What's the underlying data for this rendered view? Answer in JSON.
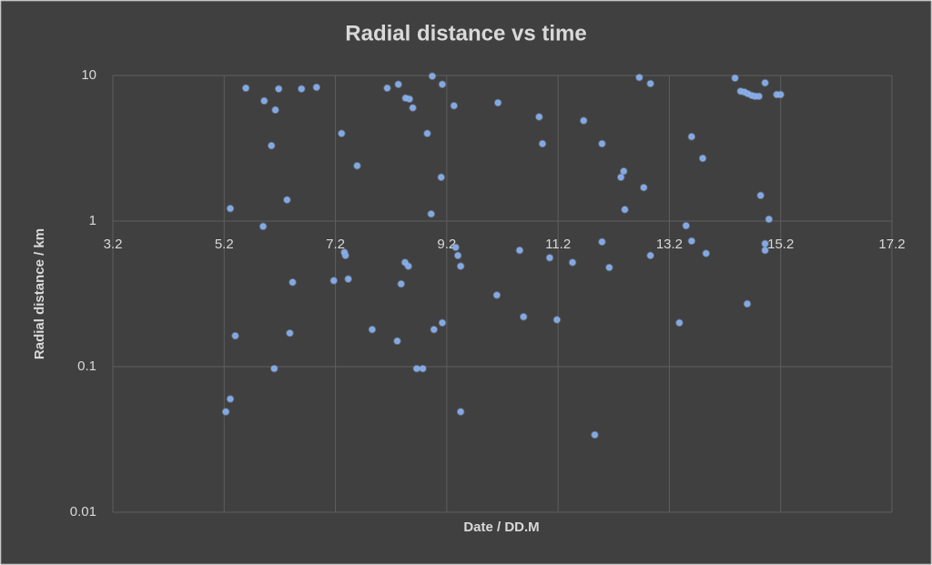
{
  "chart_data": {
    "type": "scatter",
    "title": "Radial distance vs time",
    "x_label": "Date / DD.M",
    "y_label": "Radial distance / km",
    "x": [
      5.59,
      5.31,
      5.23,
      5.31,
      5.4,
      5.92,
      5.9,
      6.05,
      6.12,
      6.18,
      6.1,
      6.33,
      6.38,
      6.43,
      6.59,
      6.86,
      7.17,
      7.31,
      7.36,
      7.38,
      7.43,
      7.59,
      7.86,
      8.13,
      8.33,
      8.38,
      8.31,
      8.46,
      8.53,
      8.59,
      8.45,
      8.51,
      8.66,
      8.77,
      8.85,
      8.92,
      8.94,
      8.97,
      9.12,
      9.1,
      9.12,
      9.33,
      9.36,
      9.4,
      9.45,
      9.45,
      10.1,
      10.12,
      10.51,
      10.58,
      10.86,
      10.92,
      11.05,
      11.18,
      11.46,
      11.66,
      11.86,
      11.99,
      11.99,
      12.12,
      12.33,
      12.38,
      12.4,
      12.66,
      12.74,
      12.86,
      12.86,
      13.38,
      13.5,
      13.6,
      13.6,
      13.8,
      13.86,
      14.38,
      14.48,
      14.55,
      14.61,
      14.68,
      14.74,
      14.81,
      14.6,
      14.84,
      14.92,
      14.92,
      14.92,
      14.99,
      15.13,
      15.2
    ],
    "values": [
      8.2,
      1.22,
      0.049,
      0.06,
      0.163,
      6.7,
      0.92,
      3.3,
      5.8,
      8.1,
      0.097,
      1.4,
      0.17,
      0.38,
      8.1,
      8.3,
      0.39,
      4.0,
      0.61,
      0.58,
      0.4,
      2.4,
      0.18,
      8.2,
      8.7,
      0.37,
      0.15,
      7.0,
      6.9,
      6.0,
      0.52,
      0.49,
      0.097,
      0.097,
      4.0,
      1.12,
      9.9,
      0.18,
      8.7,
      2.0,
      0.2,
      6.2,
      0.66,
      0.58,
      0.49,
      0.049,
      0.31,
      6.5,
      0.63,
      0.22,
      5.2,
      3.4,
      0.56,
      0.21,
      0.52,
      4.9,
      0.034,
      3.4,
      0.72,
      0.48,
      2.0,
      2.2,
      1.2,
      9.7,
      1.7,
      8.8,
      0.58,
      0.2,
      0.93,
      3.8,
      0.73,
      2.7,
      0.6,
      9.6,
      7.8,
      7.7,
      7.5,
      7.3,
      7.2,
      7.2,
      0.27,
      1.5,
      8.9,
      0.7,
      0.63,
      1.03,
      7.4,
      7.4
    ],
    "color": "#7fa8e6",
    "xlim": [
      3.2,
      17.2
    ],
    "xticks": [
      3.2,
      5.2,
      7.2,
      9.2,
      11.2,
      13.2,
      15.2,
      17.2
    ],
    "ylim": [
      0.01,
      10
    ],
    "yticks": [
      0.01,
      0.1,
      1,
      10
    ],
    "log_y": true,
    "grid": true,
    "x_axis_crosses_at": 1
  }
}
